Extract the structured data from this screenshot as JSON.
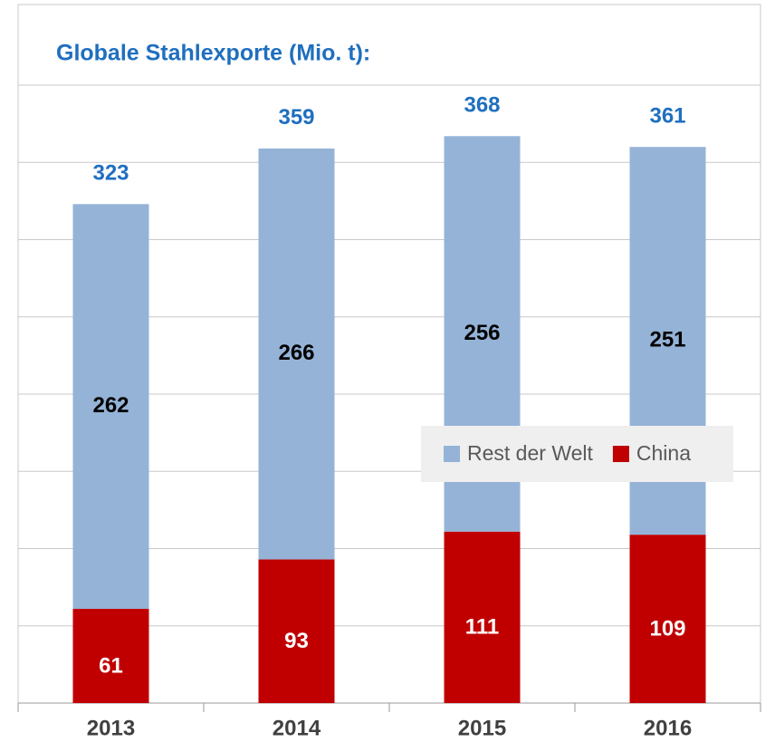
{
  "chart_data": {
    "type": "stacked_bar",
    "title": "Globale Stahlexporte (Mio. t):",
    "categories": [
      "2013",
      "2014",
      "2015",
      "2016"
    ],
    "series": [
      {
        "name": "China",
        "color": "#c00000",
        "values": [
          61,
          93,
          111,
          109
        ]
      },
      {
        "name": "Rest der Welt",
        "color": "#95b3d7",
        "values": [
          262,
          266,
          256,
          251
        ]
      }
    ],
    "totals": [
      323,
      359,
      368,
      361
    ],
    "ylim": [
      0,
      400
    ],
    "yticks": [
      0,
      50,
      100,
      150,
      200,
      250,
      300,
      350,
      400
    ],
    "grid": true
  }
}
